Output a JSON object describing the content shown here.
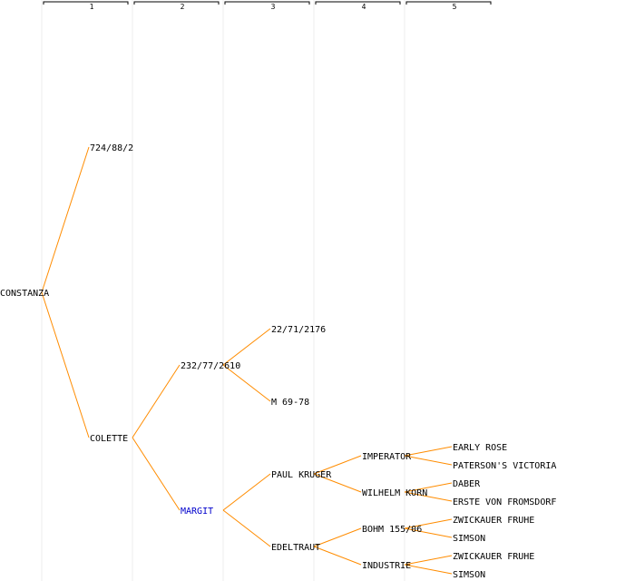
{
  "generations": [
    "1",
    "2",
    "3",
    "4",
    "5"
  ],
  "colors": {
    "edge": "#ff8c00",
    "highlight": "#0000cc",
    "text": "#000000",
    "guide": "#eeeeee"
  },
  "nodes": [
    {
      "id": "n0",
      "label": "CONSTANZA",
      "gen": 0,
      "row": 7.5
    },
    {
      "id": "n1",
      "label": "724/88/2",
      "gen": 1,
      "row": 3.5
    },
    {
      "id": "n2",
      "label": "COLETTE",
      "gen": 1,
      "row": 11.5
    },
    {
      "id": "n3",
      "label": "232/77/2610",
      "gen": 2,
      "row": 9.5
    },
    {
      "id": "n4",
      "label": "MARGIT",
      "gen": 2,
      "row": 13.5,
      "highlight": true
    },
    {
      "id": "n5",
      "label": "22/71/2176",
      "gen": 3,
      "row": 8.5
    },
    {
      "id": "n6",
      "label": "M 69-78",
      "gen": 3,
      "row": 10.5
    },
    {
      "id": "n7",
      "label": "PAUL KRUGER",
      "gen": 3,
      "row": 12.5
    },
    {
      "id": "n8",
      "label": "EDELTRAUT",
      "gen": 3,
      "row": 14.5
    },
    {
      "id": "n9",
      "label": "IMPERATOR",
      "gen": 4,
      "row": 12
    },
    {
      "id": "n10",
      "label": "WILHELM KORN",
      "gen": 4,
      "row": 13
    },
    {
      "id": "n11",
      "label": "BOHM 155/06",
      "gen": 4,
      "row": 14
    },
    {
      "id": "n12",
      "label": "INDUSTRIE",
      "gen": 4,
      "row": 15
    },
    {
      "id": "n13",
      "label": "EARLY ROSE",
      "gen": 5,
      "row": 11.75
    },
    {
      "id": "n14",
      "label": "PATERSON'S VICTORIA",
      "gen": 5,
      "row": 12.25
    },
    {
      "id": "n15",
      "label": "DABER",
      "gen": 5,
      "row": 12.75
    },
    {
      "id": "n16",
      "label": "ERSTE VON FROMSDORF",
      "gen": 5,
      "row": 13.25
    },
    {
      "id": "n17",
      "label": "ZWICKAUER FRUHE",
      "gen": 5,
      "row": 13.75
    },
    {
      "id": "n18",
      "label": "SIMSON",
      "gen": 5,
      "row": 14.25
    },
    {
      "id": "n19",
      "label": "ZWICKAUER FRUHE",
      "gen": 5,
      "row": 14.75
    },
    {
      "id": "n20",
      "label": "SIMSON",
      "gen": 5,
      "row": 15.25
    }
  ],
  "edges": [
    [
      "n0",
      "n1"
    ],
    [
      "n0",
      "n2"
    ],
    [
      "n2",
      "n3"
    ],
    [
      "n2",
      "n4"
    ],
    [
      "n3",
      "n5"
    ],
    [
      "n3",
      "n6"
    ],
    [
      "n4",
      "n7"
    ],
    [
      "n4",
      "n8"
    ],
    [
      "n7",
      "n9"
    ],
    [
      "n7",
      "n10"
    ],
    [
      "n8",
      "n11"
    ],
    [
      "n8",
      "n12"
    ],
    [
      "n9",
      "n13"
    ],
    [
      "n9",
      "n14"
    ],
    [
      "n10",
      "n15"
    ],
    [
      "n10",
      "n16"
    ],
    [
      "n11",
      "n17"
    ],
    [
      "n11",
      "n18"
    ],
    [
      "n12",
      "n19"
    ],
    [
      "n12",
      "n20"
    ]
  ]
}
